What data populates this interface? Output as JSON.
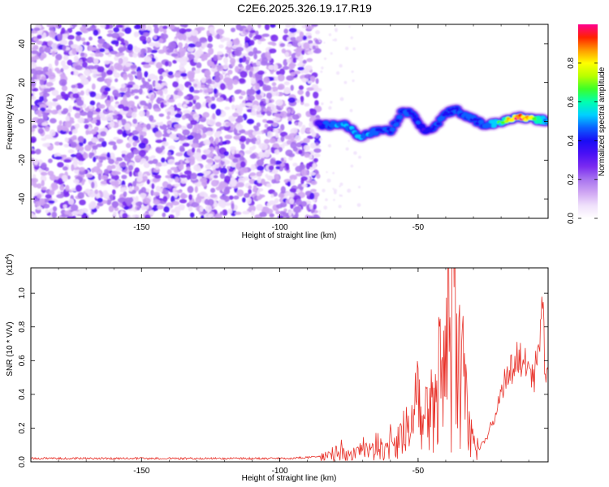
{
  "title": "C2E6.2025.326.19.17.R19",
  "colors": {
    "snr_line": "#e8322a",
    "colormap": [
      "#ffffff",
      "#efe0fb",
      "#cfa6f3",
      "#a874ef",
      "#7a2bf0",
      "#4a10f5",
      "#1a0cf5",
      "#0b61ff",
      "#00d0ff",
      "#00ffb0",
      "#3cff28",
      "#b8ff00",
      "#ffff00",
      "#ff9a00",
      "#ff2200",
      "#ff0090"
    ]
  },
  "chart_data": [
    {
      "type": "heatmap",
      "xlabel": "Height of straight line (km)",
      "ylabel": "Frequency (Hz)",
      "xlim": [
        -190,
        -3
      ],
      "ylim": [
        -50,
        50
      ],
      "xticks": [
        -150,
        -100,
        -50
      ],
      "yticks": [
        40,
        20,
        0,
        -20,
        -40
      ],
      "grid": false,
      "colorbar": {
        "label": "Normalized spectral amplitude",
        "range": [
          0,
          1
        ],
        "ticks": [
          0.0,
          0.2,
          0.4,
          0.6,
          0.8
        ]
      },
      "noise_region": {
        "x_range": [
          -190,
          -86
        ],
        "y_range": [
          -50,
          50
        ],
        "level": "0.1 to 0.3"
      },
      "signal_ridge": [
        {
          "x": -86,
          "y": -2,
          "z": 0.35
        },
        {
          "x": -82,
          "y": -2,
          "z": 0.5
        },
        {
          "x": -78,
          "y": -1,
          "z": 0.5
        },
        {
          "x": -75,
          "y": -3,
          "z": 0.5
        },
        {
          "x": -72,
          "y": -8,
          "z": 0.5
        },
        {
          "x": -68,
          "y": -6,
          "z": 0.5
        },
        {
          "x": -64,
          "y": -5,
          "z": 0.45
        },
        {
          "x": -60,
          "y": -5,
          "z": 0.45
        },
        {
          "x": -56,
          "y": 4,
          "z": 0.45
        },
        {
          "x": -52,
          "y": 5,
          "z": 0.45
        },
        {
          "x": -48,
          "y": -5,
          "z": 0.4
        },
        {
          "x": -44,
          "y": -3,
          "z": 0.45
        },
        {
          "x": -40,
          "y": 4,
          "z": 0.45
        },
        {
          "x": -36,
          "y": 6,
          "z": 0.45
        },
        {
          "x": -33,
          "y": 3,
          "z": 0.5
        },
        {
          "x": -30,
          "y": 1,
          "z": 0.45
        },
        {
          "x": -26,
          "y": -2,
          "z": 0.45
        },
        {
          "x": -22,
          "y": -1,
          "z": 0.55
        },
        {
          "x": -18,
          "y": 1,
          "z": 0.75
        },
        {
          "x": -15,
          "y": 2,
          "z": 0.95
        },
        {
          "x": -12,
          "y": 2,
          "z": 0.95
        },
        {
          "x": -9,
          "y": 1,
          "z": 0.8
        },
        {
          "x": -6,
          "y": 1,
          "z": 0.6
        },
        {
          "x": -3,
          "y": 0,
          "z": 0.5
        }
      ]
    },
    {
      "type": "line",
      "xlabel": "Height of straight line (km)",
      "ylabel": "SNR (10 * V/V)",
      "y_scale_label": "(x10",
      "y_scale_exponent": "4",
      "xlim": [
        -190,
        -3
      ],
      "ylim": [
        0,
        1.15
      ],
      "xticks": [
        -150,
        -100,
        -50
      ],
      "yticks": [
        0.0,
        0.2,
        0.4,
        0.6,
        0.8,
        1.0
      ],
      "grid": false,
      "series": [
        {
          "x": [
            -190,
            -180,
            -170,
            -160,
            -150,
            -140,
            -130,
            -120,
            -110,
            -100,
            -90,
            -85,
            -80,
            -78,
            -75,
            -72,
            -70,
            -68,
            -65,
            -62,
            -60,
            -58,
            -55,
            -53,
            -51,
            -50,
            -48,
            -46,
            -44,
            -42,
            -40,
            -39,
            -38,
            -37,
            -36,
            -35,
            -34,
            -33,
            -32,
            -31,
            -30,
            -28,
            -26,
            -24,
            -22,
            -20,
            -18,
            -16,
            -14,
            -12,
            -10,
            -8,
            -7,
            -6,
            -5,
            -4,
            -3
          ],
          "y": [
            0.02,
            0.02,
            0.02,
            0.02,
            0.02,
            0.02,
            0.02,
            0.02,
            0.02,
            0.02,
            0.025,
            0.03,
            0.05,
            0.08,
            0.04,
            0.06,
            0.08,
            0.06,
            0.1,
            0.07,
            0.12,
            0.1,
            0.2,
            0.15,
            0.3,
            0.42,
            0.2,
            0.3,
            0.35,
            0.5,
            0.62,
            0.75,
            0.68,
            1.15,
            0.85,
            0.7,
            0.75,
            0.4,
            0.25,
            0.15,
            0.1,
            0.08,
            0.12,
            0.2,
            0.3,
            0.42,
            0.5,
            0.55,
            0.62,
            0.6,
            0.55,
            0.5,
            0.65,
            0.75,
            0.94,
            0.5,
            0.58
          ]
        }
      ]
    }
  ]
}
